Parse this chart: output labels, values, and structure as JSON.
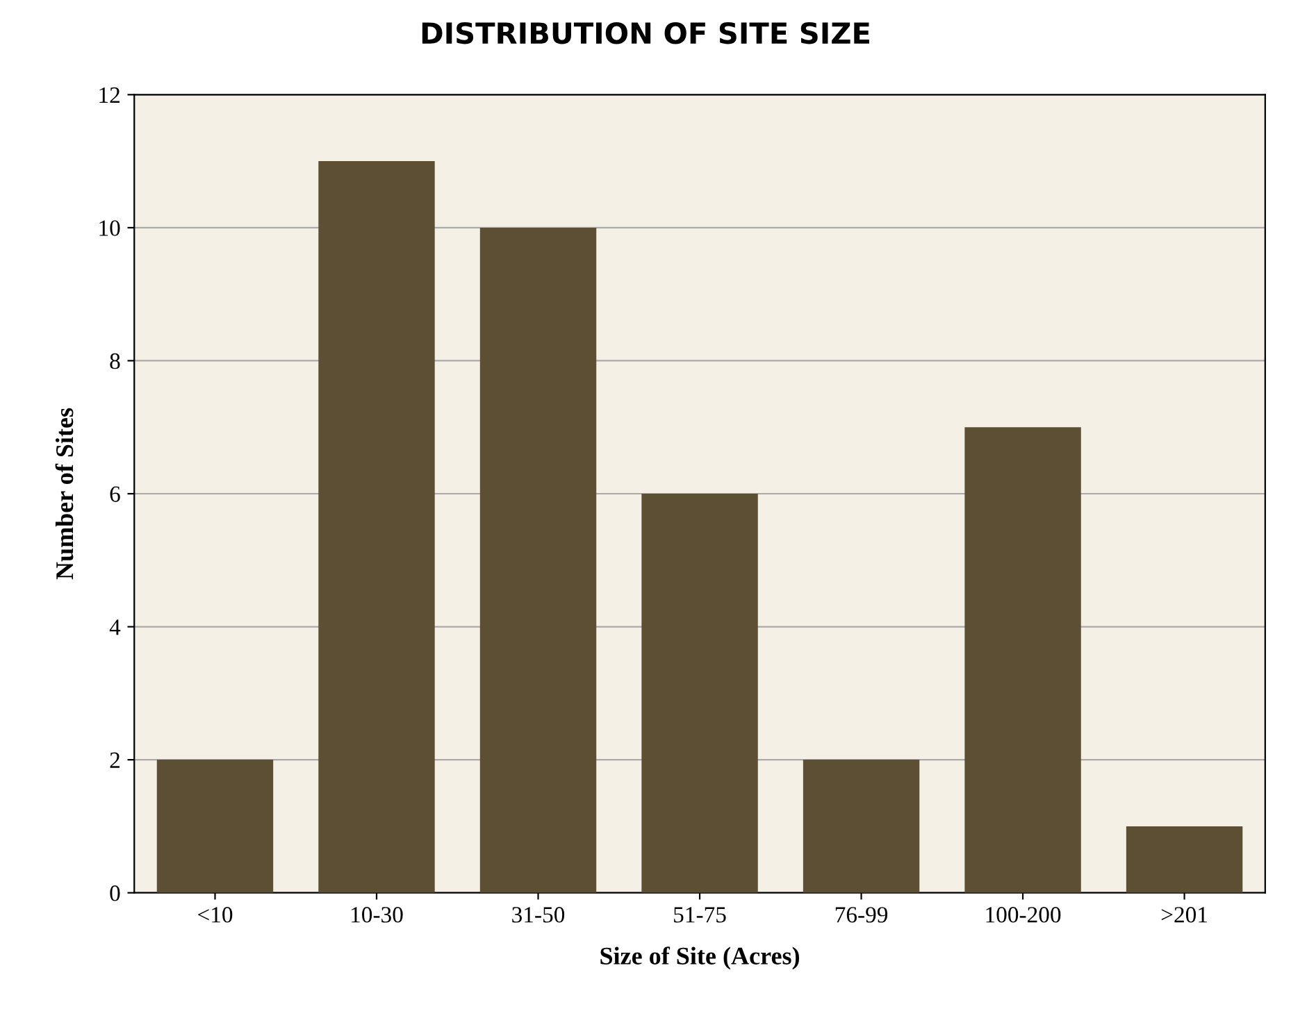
{
  "chart_data": {
    "type": "bar",
    "title": "DISTRIBUTION OF SITE SIZE",
    "xlabel": "Size of Site (Acres)",
    "ylabel": "Number of Sites",
    "categories": [
      "<10",
      "10-30",
      "31-50",
      "51-75",
      "76-99",
      "100-200",
      ">201"
    ],
    "values": [
      2,
      11,
      10,
      6,
      2,
      7,
      1
    ],
    "color": "#5c4f33",
    "ylim": [
      0,
      12
    ],
    "yticks": [
      0,
      2,
      4,
      6,
      8,
      10,
      12
    ],
    "grid": "y"
  }
}
